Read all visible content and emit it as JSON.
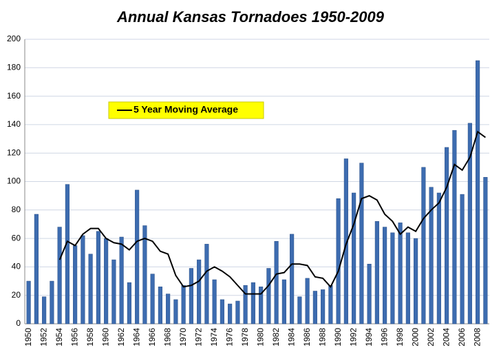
{
  "chart_data": {
    "type": "bar",
    "title": "Annual Kansas Tornadoes 1950-2009",
    "categories": [
      "1950",
      null,
      "1952",
      null,
      "1954",
      null,
      "1956",
      null,
      "1958",
      null,
      "1960",
      null,
      "1962",
      null,
      "1964",
      null,
      "1966",
      null,
      "1968",
      null,
      "1970",
      null,
      "1972",
      null,
      "1974",
      null,
      "1976",
      null,
      "1978",
      null,
      "1980",
      null,
      "1982",
      null,
      "1984",
      null,
      "1986",
      null,
      "1988",
      null,
      "1990",
      null,
      "1992",
      null,
      "1994",
      null,
      "1996",
      null,
      "1998",
      null,
      "2000",
      null,
      "2002",
      null,
      "2004",
      null,
      "2006",
      null,
      "2008",
      null
    ],
    "series": [
      {
        "type": "bar",
        "color": "#3d6cb0",
        "values": [
          30,
          77,
          19,
          30,
          68,
          98,
          55,
          62,
          49,
          65,
          60,
          45,
          61,
          29,
          94,
          69,
          35,
          26,
          21,
          17,
          27,
          39,
          45,
          56,
          31,
          17,
          14,
          16,
          27,
          29,
          26,
          39,
          58,
          31,
          63,
          19,
          32,
          23,
          24,
          27,
          88,
          116,
          92,
          113,
          42,
          72,
          68,
          64,
          71,
          64,
          60,
          110,
          96,
          92,
          124,
          136,
          91,
          141,
          185,
          103
        ]
      },
      {
        "type": "line",
        "name": "5 Year Moving Average",
        "color": "#000000",
        "values": [
          null,
          null,
          null,
          null,
          45,
          58,
          55,
          63,
          67,
          67,
          60,
          57,
          56,
          52,
          58,
          60,
          58,
          51,
          49,
          34,
          26,
          27,
          30,
          37,
          40,
          37,
          33,
          27,
          21,
          21,
          21,
          27,
          35,
          36,
          42,
          42,
          41,
          33,
          32,
          26,
          37,
          56,
          70,
          88,
          90,
          87,
          77,
          72,
          63,
          68,
          65,
          74,
          80,
          85,
          96,
          112,
          108,
          117,
          135,
          131
        ]
      }
    ],
    "ylim": [
      0,
      200
    ],
    "yticks": [
      0,
      20,
      40,
      60,
      80,
      100,
      120,
      140,
      160,
      180,
      200
    ],
    "grid": true,
    "legend_color": "#ffff00"
  }
}
